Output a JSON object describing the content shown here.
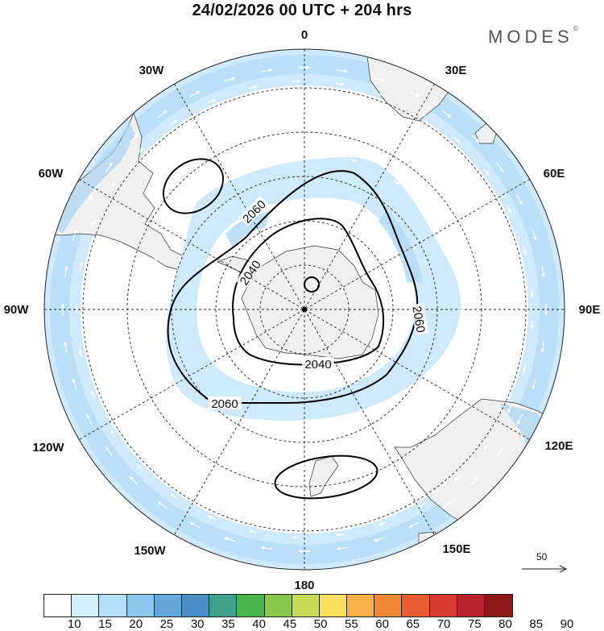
{
  "title": "24/02/2026  00 UTC  + 204 hrs",
  "brand": {
    "name": "MODES",
    "mark": "©"
  },
  "longitude_labels": {
    "top": "0",
    "top_right": "30E",
    "right_upper": "60E",
    "right": "90E",
    "right_lower": "120E",
    "bottom_right": "150E",
    "bottom": "180",
    "bottom_left": "150W",
    "left_lower": "120W",
    "left": "90W",
    "left_upper": "60W",
    "top_left": "30W"
  },
  "contour_labels": [
    "2060",
    "2040",
    "2060",
    "2040",
    "2060"
  ],
  "reference_vector": {
    "label": "50"
  },
  "legend": {
    "labels": [
      "10",
      "15",
      "20",
      "25",
      "30",
      "35",
      "40",
      "45",
      "50",
      "55",
      "60",
      "65",
      "70",
      "75",
      "80",
      "85",
      "90"
    ],
    "colors": [
      "#ffffff",
      "#d3efff",
      "#b3e0f8",
      "#8ac6ee",
      "#62a6dc",
      "#4a8ec8",
      "#40a28a",
      "#4cb44c",
      "#8ac84c",
      "#c8dc58",
      "#f8e05c",
      "#f8b048",
      "#f08838",
      "#e85c30",
      "#d83830",
      "#b8242c",
      "#8c1818"
    ]
  },
  "colors": {
    "land": "#f0f0f0",
    "jet_light": "#cfeafc",
    "jet_medium": "#b2dbf6",
    "contour": "#000000"
  }
}
